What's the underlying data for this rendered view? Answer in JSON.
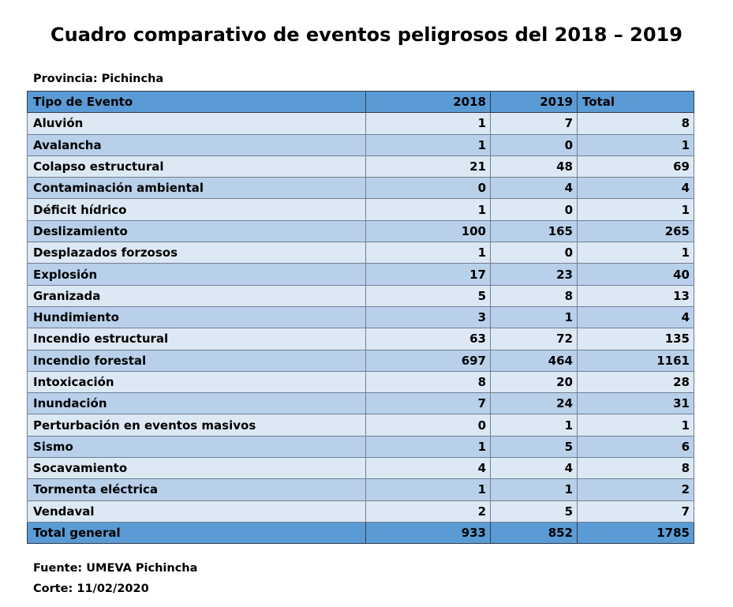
{
  "title": "Cuadro comparativo de eventos peligrosos del 2018 – 2019",
  "subtitle": "Provincia: Pichincha",
  "table": {
    "headers": [
      "Tipo de Evento",
      "2018",
      "2019",
      "Total"
    ],
    "rows": [
      [
        "Aluvión",
        "1",
        "7",
        "8"
      ],
      [
        "Avalancha",
        "1",
        "0",
        "1"
      ],
      [
        "Colapso estructural",
        "21",
        "48",
        "69"
      ],
      [
        "Contaminación ambiental",
        "0",
        "4",
        "4"
      ],
      [
        "Déficit hídrico",
        "1",
        "0",
        "1"
      ],
      [
        "Deslizamiento",
        "100",
        "165",
        "265"
      ],
      [
        "Desplazados forzosos",
        "1",
        "0",
        "1"
      ],
      [
        "Explosión",
        "17",
        "23",
        "40"
      ],
      [
        "Granizada",
        "5",
        "8",
        "13"
      ],
      [
        "Hundimiento",
        "3",
        "1",
        "4"
      ],
      [
        "Incendio estructural",
        "63",
        "72",
        "135"
      ],
      [
        "Incendio forestal",
        "697",
        "464",
        "1161"
      ],
      [
        "Intoxicación",
        "8",
        "20",
        "28"
      ],
      [
        "Inundación",
        "7",
        "24",
        "31"
      ],
      [
        "Perturbación en eventos masivos",
        "0",
        "1",
        "1"
      ],
      [
        "Sismo",
        "1",
        "5",
        "6"
      ],
      [
        "Socavamiento",
        "4",
        "4",
        "8"
      ],
      [
        "Tormenta eléctrica",
        "1",
        "1",
        "2"
      ],
      [
        "Vendaval",
        "2",
        "5",
        "7"
      ]
    ],
    "total": [
      "Total general",
      "933",
      "852",
      "1785"
    ]
  },
  "footer": {
    "source": "Fuente: UMEVA Pichincha",
    "cutoff": "Corte: 11/02/2020"
  },
  "colors": {
    "header_bg": "#5b9bd5",
    "row_light": "#dde8f5",
    "row_dark": "#b9d0eb"
  }
}
